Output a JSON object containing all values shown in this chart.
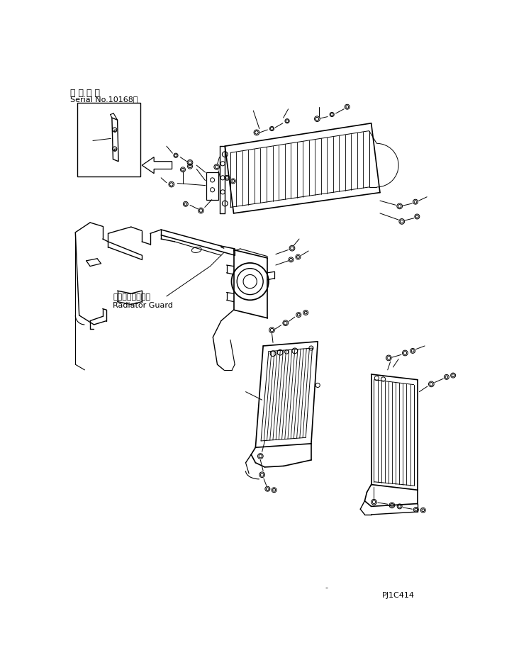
{
  "title_line1": "通 用 号 機",
  "title_line2": "Serial No.10168～",
  "label1": "ラジエータガード",
  "label2": "Radiator Guard",
  "part_id": "PJ1C414",
  "bg_color": "#ffffff",
  "line_color": "#000000"
}
